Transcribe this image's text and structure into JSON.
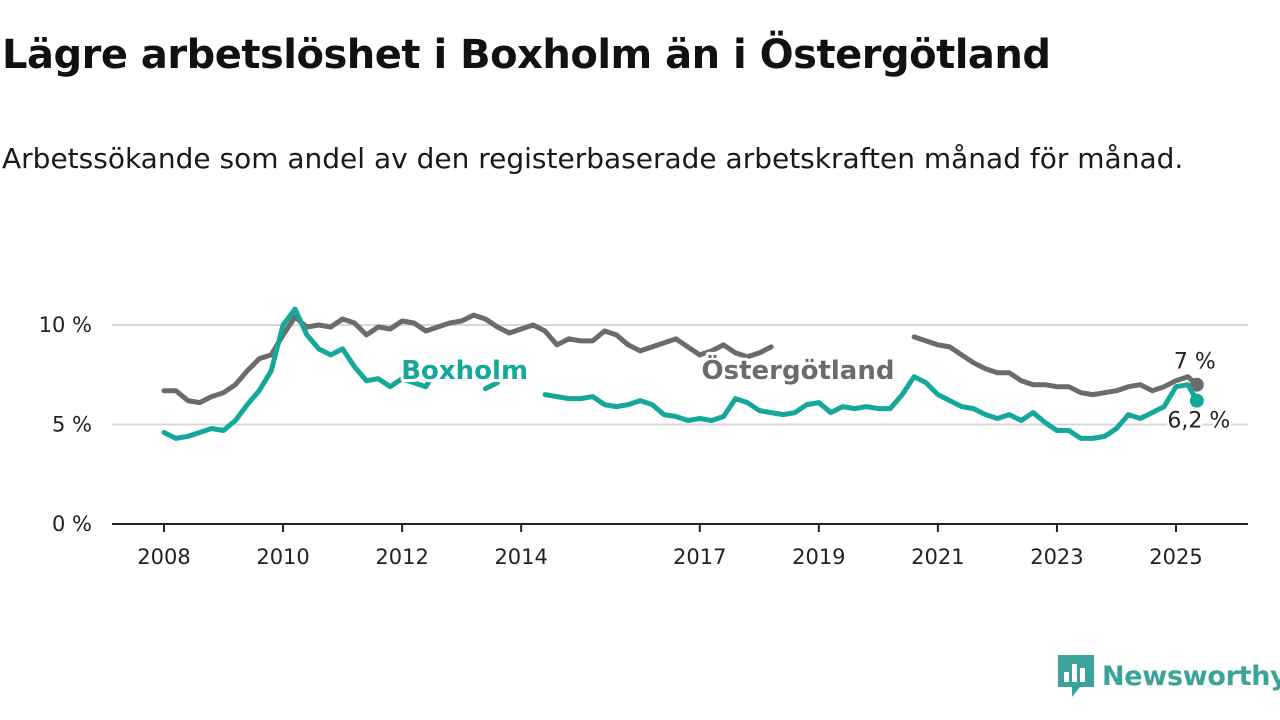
{
  "title": "Lägre arbetslöshet i Boxholm än i Östergötland",
  "subtitle": "Arbetssökande som andel av den registerbaserade arbetskraften månad för månad.",
  "brand": {
    "name": "Newsworthy",
    "color": "#3aa39a",
    "icon": "newsworthy-logo-icon"
  },
  "chart_data": {
    "type": "line",
    "title": "",
    "xlabel": "",
    "ylabel": "",
    "xlim": [
      2007.9,
      2025.6
    ],
    "ylim": [
      0,
      10
    ],
    "grid": true,
    "yticks": [
      {
        "value": 0,
        "label": "0 %"
      },
      {
        "value": 5,
        "label": "5 %"
      },
      {
        "value": 10,
        "label": "10 %"
      }
    ],
    "xticks": [
      {
        "value": 2008,
        "label": "2008"
      },
      {
        "value": 2010,
        "label": "2010"
      },
      {
        "value": 2012,
        "label": "2012"
      },
      {
        "value": 2014,
        "label": "2014"
      },
      {
        "value": 2017,
        "label": "2017"
      },
      {
        "value": 2019,
        "label": "2019"
      },
      {
        "value": 2021,
        "label": "2021"
      },
      {
        "value": 2023,
        "label": "2023"
      },
      {
        "value": 2025,
        "label": "2025"
      }
    ],
    "series": [
      {
        "name": "Östergötland",
        "color": "#6b6a6d",
        "end_label": "7 %",
        "label_pos": [
          2018.65,
          7.75
        ],
        "segments": [
          [
            [
              2008.0,
              6.7
            ],
            [
              2008.2,
              6.7
            ],
            [
              2008.4,
              6.2
            ],
            [
              2008.6,
              6.1
            ],
            [
              2008.8,
              6.4
            ],
            [
              2009.0,
              6.6
            ],
            [
              2009.2,
              7.0
            ],
            [
              2009.4,
              7.7
            ],
            [
              2009.6,
              8.3
            ],
            [
              2009.8,
              8.5
            ],
            [
              2010.0,
              9.5
            ],
            [
              2010.2,
              10.4
            ],
            [
              2010.4,
              9.9
            ],
            [
              2010.6,
              10.0
            ],
            [
              2010.8,
              9.9
            ],
            [
              2011.0,
              10.3
            ],
            [
              2011.2,
              10.1
            ],
            [
              2011.4,
              9.5
            ],
            [
              2011.6,
              9.9
            ],
            [
              2011.8,
              9.8
            ],
            [
              2012.0,
              10.2
            ],
            [
              2012.2,
              10.1
            ],
            [
              2012.4,
              9.7
            ],
            [
              2012.6,
              9.9
            ],
            [
              2012.8,
              10.1
            ],
            [
              2013.0,
              10.2
            ],
            [
              2013.2,
              10.5
            ],
            [
              2013.4,
              10.3
            ],
            [
              2013.6,
              9.9
            ],
            [
              2013.8,
              9.6
            ],
            [
              2014.0,
              9.8
            ],
            [
              2014.2,
              10.0
            ],
            [
              2014.4,
              9.7
            ],
            [
              2014.6,
              9.0
            ],
            [
              2014.8,
              9.3
            ],
            [
              2015.0,
              9.2
            ],
            [
              2015.2,
              9.2
            ],
            [
              2015.4,
              9.7
            ],
            [
              2015.6,
              9.5
            ],
            [
              2015.8,
              9.0
            ],
            [
              2016.0,
              8.7
            ],
            [
              2016.2,
              8.9
            ],
            [
              2016.4,
              9.1
            ],
            [
              2016.6,
              9.3
            ],
            [
              2016.8,
              8.9
            ],
            [
              2017.0,
              8.5
            ],
            [
              2017.2,
              8.7
            ],
            [
              2017.4,
              9.0
            ],
            [
              2017.6,
              8.6
            ],
            [
              2017.8,
              8.4
            ],
            [
              2018.0,
              8.6
            ],
            [
              2018.2,
              8.9
            ]
          ],
          [
            [
              2020.6,
              9.4
            ],
            [
              2020.8,
              9.2
            ],
            [
              2021.0,
              9.0
            ],
            [
              2021.2,
              8.9
            ],
            [
              2021.4,
              8.5
            ],
            [
              2021.6,
              8.1
            ],
            [
              2021.8,
              7.8
            ],
            [
              2022.0,
              7.6
            ],
            [
              2022.2,
              7.6
            ],
            [
              2022.4,
              7.2
            ],
            [
              2022.6,
              7.0
            ],
            [
              2022.8,
              7.0
            ],
            [
              2023.0,
              6.9
            ],
            [
              2023.2,
              6.9
            ],
            [
              2023.4,
              6.6
            ],
            [
              2023.6,
              6.5
            ],
            [
              2023.8,
              6.6
            ],
            [
              2024.0,
              6.7
            ],
            [
              2024.2,
              6.9
            ],
            [
              2024.4,
              7.0
            ],
            [
              2024.6,
              6.7
            ],
            [
              2024.8,
              6.9
            ],
            [
              2025.0,
              7.2
            ],
            [
              2025.2,
              7.4
            ],
            [
              2025.35,
              7.0
            ]
          ]
        ]
      },
      {
        "name": "Boxholm",
        "color": "#15a89a",
        "end_label": "6,2 %",
        "label_pos": [
          2013.05,
          7.75
        ],
        "segments": [
          [
            [
              2008.0,
              4.6
            ],
            [
              2008.2,
              4.3
            ],
            [
              2008.4,
              4.4
            ],
            [
              2008.6,
              4.6
            ],
            [
              2008.8,
              4.8
            ],
            [
              2009.0,
              4.7
            ],
            [
              2009.2,
              5.2
            ],
            [
              2009.4,
              6.0
            ],
            [
              2009.6,
              6.7
            ],
            [
              2009.8,
              7.7
            ],
            [
              2010.0,
              10.0
            ],
            [
              2010.2,
              10.8
            ],
            [
              2010.4,
              9.5
            ],
            [
              2010.6,
              8.8
            ],
            [
              2010.8,
              8.5
            ],
            [
              2011.0,
              8.8
            ],
            [
              2011.2,
              7.9
            ],
            [
              2011.4,
              7.2
            ],
            [
              2011.6,
              7.3
            ],
            [
              2011.8,
              6.9
            ],
            [
              2012.0,
              7.3
            ],
            [
              2012.2,
              7.1
            ],
            [
              2012.4,
              6.9
            ],
            [
              2012.6,
              7.9
            ]
          ],
          [
            [
              2013.4,
              6.8
            ],
            [
              2013.6,
              7.1
            ]
          ],
          [
            [
              2014.4,
              6.5
            ],
            [
              2014.6,
              6.4
            ],
            [
              2014.8,
              6.3
            ],
            [
              2015.0,
              6.3
            ],
            [
              2015.2,
              6.4
            ],
            [
              2015.4,
              6.0
            ],
            [
              2015.6,
              5.9
            ],
            [
              2015.8,
              6.0
            ],
            [
              2016.0,
              6.2
            ],
            [
              2016.2,
              6.0
            ],
            [
              2016.4,
              5.5
            ],
            [
              2016.6,
              5.4
            ],
            [
              2016.8,
              5.2
            ],
            [
              2017.0,
              5.3
            ],
            [
              2017.2,
              5.2
            ],
            [
              2017.4,
              5.4
            ],
            [
              2017.6,
              6.3
            ],
            [
              2017.8,
              6.1
            ],
            [
              2018.0,
              5.7
            ],
            [
              2018.2,
              5.6
            ],
            [
              2018.4,
              5.5
            ],
            [
              2018.6,
              5.6
            ],
            [
              2018.8,
              6.0
            ],
            [
              2019.0,
              6.1
            ],
            [
              2019.2,
              5.6
            ],
            [
              2019.4,
              5.9
            ],
            [
              2019.6,
              5.8
            ],
            [
              2019.8,
              5.9
            ],
            [
              2020.0,
              5.8
            ],
            [
              2020.2,
              5.8
            ],
            [
              2020.4,
              6.5
            ],
            [
              2020.6,
              7.4
            ],
            [
              2020.8,
              7.1
            ],
            [
              2021.0,
              6.5
            ],
            [
              2021.2,
              6.2
            ],
            [
              2021.4,
              5.9
            ],
            [
              2021.6,
              5.8
            ],
            [
              2021.8,
              5.5
            ],
            [
              2022.0,
              5.3
            ],
            [
              2022.2,
              5.5
            ],
            [
              2022.4,
              5.2
            ],
            [
              2022.6,
              5.6
            ],
            [
              2022.8,
              5.1
            ],
            [
              2023.0,
              4.7
            ],
            [
              2023.2,
              4.7
            ],
            [
              2023.4,
              4.3
            ],
            [
              2023.6,
              4.3
            ],
            [
              2023.8,
              4.4
            ],
            [
              2024.0,
              4.8
            ],
            [
              2024.2,
              5.5
            ],
            [
              2024.4,
              5.3
            ],
            [
              2024.6,
              5.6
            ],
            [
              2024.8,
              5.9
            ],
            [
              2025.0,
              6.9
            ],
            [
              2025.2,
              7.0
            ],
            [
              2025.35,
              6.2
            ]
          ]
        ]
      }
    ]
  }
}
